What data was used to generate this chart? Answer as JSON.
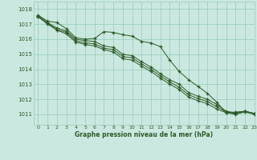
{
  "title": "Graphe pression niveau de la mer (hPa)",
  "bg_color": "#cbe8e0",
  "grid_color": "#9ecfbf",
  "line_color": "#2d5a27",
  "xlim": [
    -0.5,
    23
  ],
  "ylim": [
    1010.3,
    1018.5
  ],
  "yticks": [
    1011,
    1012,
    1013,
    1014,
    1015,
    1016,
    1017,
    1018
  ],
  "xticks": [
    0,
    1,
    2,
    3,
    4,
    5,
    6,
    7,
    8,
    9,
    10,
    11,
    12,
    13,
    14,
    15,
    16,
    17,
    18,
    19,
    20,
    21,
    22,
    23
  ],
  "series": [
    [
      1017.6,
      1017.2,
      1017.1,
      1016.7,
      1016.1,
      1016.0,
      1016.05,
      1016.5,
      1016.45,
      1016.3,
      1016.2,
      1015.85,
      1015.75,
      1015.5,
      1014.6,
      1013.85,
      1013.3,
      1012.85,
      1012.4,
      1011.8,
      1011.1,
      1011.15,
      1011.2,
      1011.05
    ],
    [
      1017.55,
      1017.1,
      1016.75,
      1016.55,
      1016.0,
      1015.9,
      1015.85,
      1015.55,
      1015.45,
      1015.0,
      1014.9,
      1014.5,
      1014.15,
      1013.7,
      1013.3,
      1013.0,
      1012.45,
      1012.2,
      1012.0,
      1011.65,
      1011.2,
      1011.1,
      1011.2,
      1011.05
    ],
    [
      1017.5,
      1017.05,
      1016.65,
      1016.45,
      1015.9,
      1015.75,
      1015.7,
      1015.4,
      1015.3,
      1014.85,
      1014.75,
      1014.35,
      1014.0,
      1013.55,
      1013.15,
      1012.8,
      1012.3,
      1012.05,
      1011.85,
      1011.5,
      1011.15,
      1011.05,
      1011.2,
      1011.05
    ],
    [
      1017.5,
      1017.0,
      1016.6,
      1016.35,
      1015.8,
      1015.65,
      1015.55,
      1015.3,
      1015.15,
      1014.7,
      1014.6,
      1014.2,
      1013.85,
      1013.4,
      1013.0,
      1012.65,
      1012.15,
      1011.9,
      1011.7,
      1011.35,
      1011.1,
      1011.0,
      1011.15,
      1011.0
    ]
  ]
}
